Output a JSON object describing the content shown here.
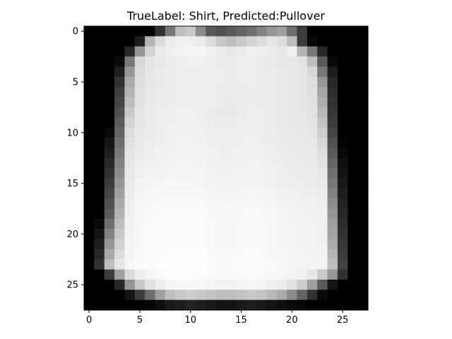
{
  "chart_data": {
    "type": "heatmap",
    "title": "TrueLabel: Shirt, Predicted:Pullover",
    "xlabel": "",
    "ylabel": "",
    "colormap": "gray",
    "background_color": "#ffffff",
    "grid": false,
    "legend": "none",
    "xlim": [
      -0.5,
      27.5
    ],
    "ylim": [
      27.5,
      -0.5
    ],
    "x_ticks": [
      0,
      5,
      10,
      15,
      20,
      25
    ],
    "y_ticks": [
      0,
      5,
      10,
      15,
      20,
      25
    ],
    "x_tick_labels": [
      "0",
      "5",
      "10",
      "15",
      "20",
      "25"
    ],
    "y_tick_labels": [
      "0",
      "5",
      "10",
      "15",
      "20",
      "25"
    ],
    "value_range": [
      0,
      255
    ],
    "pixels": [
      [
        0,
        0,
        0,
        0,
        0,
        0,
        5,
        50,
        120,
        190,
        200,
        140,
        90,
        80,
        90,
        100,
        110,
        130,
        150,
        160,
        110,
        60,
        0,
        0,
        0,
        0,
        0,
        0
      ],
      [
        0,
        0,
        0,
        0,
        0,
        30,
        180,
        220,
        235,
        240,
        240,
        235,
        220,
        200,
        190,
        200,
        210,
        220,
        230,
        220,
        190,
        60,
        10,
        0,
        0,
        0,
        0,
        0
      ],
      [
        0,
        0,
        0,
        0,
        40,
        150,
        210,
        235,
        240,
        242,
        245,
        245,
        240,
        235,
        232,
        235,
        240,
        238,
        235,
        232,
        240,
        180,
        120,
        40,
        0,
        0,
        0,
        0
      ],
      [
        0,
        0,
        0,
        10,
        120,
        215,
        230,
        232,
        235,
        238,
        240,
        240,
        238,
        236,
        236,
        237,
        238,
        236,
        234,
        232,
        232,
        228,
        190,
        90,
        10,
        0,
        0,
        0
      ],
      [
        0,
        0,
        0,
        30,
        150,
        220,
        230,
        234,
        236,
        238,
        238,
        239,
        239,
        237,
        236,
        238,
        238,
        236,
        235,
        233,
        232,
        230,
        215,
        120,
        30,
        0,
        0,
        0
      ],
      [
        0,
        0,
        0,
        50,
        170,
        222,
        231,
        234,
        236,
        237,
        238,
        238,
        238,
        237,
        236,
        237,
        238,
        236,
        235,
        233,
        232,
        230,
        222,
        150,
        40,
        0,
        0,
        0
      ],
      [
        0,
        0,
        0,
        60,
        180,
        224,
        232,
        235,
        236,
        237,
        238,
        238,
        237,
        236,
        235,
        236,
        237,
        236,
        235,
        233,
        232,
        230,
        224,
        165,
        45,
        0,
        0,
        0
      ],
      [
        0,
        0,
        0,
        70,
        190,
        226,
        233,
        236,
        237,
        238,
        238,
        238,
        237,
        235,
        234,
        236,
        237,
        236,
        235,
        233,
        232,
        230,
        225,
        175,
        50,
        0,
        0,
        0
      ],
      [
        0,
        0,
        0,
        80,
        200,
        228,
        234,
        237,
        238,
        240,
        240,
        238,
        236,
        232,
        233,
        236,
        238,
        237,
        235,
        233,
        232,
        230,
        226,
        185,
        55,
        0,
        0,
        0
      ],
      [
        0,
        0,
        0,
        90,
        210,
        230,
        235,
        238,
        239,
        240,
        240,
        239,
        237,
        236,
        236,
        237,
        238,
        237,
        235,
        233,
        232,
        231,
        228,
        195,
        60,
        0,
        0,
        0
      ],
      [
        0,
        0,
        10,
        100,
        220,
        232,
        236,
        238,
        240,
        241,
        241,
        240,
        238,
        237,
        237,
        238,
        239,
        238,
        236,
        234,
        233,
        232,
        230,
        205,
        70,
        0,
        0,
        0
      ],
      [
        0,
        0,
        20,
        110,
        225,
        234,
        237,
        239,
        240,
        242,
        242,
        241,
        239,
        238,
        238,
        239,
        240,
        239,
        237,
        235,
        234,
        233,
        232,
        215,
        80,
        5,
        0,
        0
      ],
      [
        0,
        0,
        30,
        120,
        228,
        236,
        238,
        240,
        241,
        243,
        243,
        242,
        240,
        239,
        239,
        240,
        241,
        240,
        238,
        236,
        235,
        234,
        233,
        222,
        90,
        10,
        0,
        0
      ],
      [
        0,
        0,
        40,
        130,
        230,
        238,
        240,
        241,
        242,
        244,
        244,
        243,
        241,
        240,
        240,
        241,
        242,
        241,
        239,
        237,
        236,
        235,
        234,
        228,
        100,
        15,
        0,
        0
      ],
      [
        0,
        0,
        50,
        140,
        232,
        240,
        242,
        243,
        244,
        245,
        245,
        244,
        242,
        241,
        241,
        242,
        243,
        242,
        240,
        238,
        237,
        236,
        235,
        232,
        110,
        20,
        0,
        0
      ],
      [
        0,
        0,
        60,
        150,
        234,
        242,
        244,
        245,
        246,
        246,
        246,
        245,
        243,
        242,
        242,
        243,
        244,
        243,
        241,
        239,
        238,
        237,
        236,
        234,
        120,
        25,
        0,
        0
      ],
      [
        0,
        0,
        70,
        160,
        236,
        244,
        246,
        247,
        248,
        248,
        248,
        247,
        245,
        244,
        244,
        245,
        246,
        245,
        243,
        241,
        240,
        239,
        238,
        236,
        130,
        30,
        0,
        0
      ],
      [
        0,
        0,
        80,
        170,
        238,
        246,
        248,
        249,
        250,
        250,
        250,
        249,
        247,
        246,
        246,
        247,
        248,
        247,
        245,
        243,
        242,
        241,
        240,
        238,
        140,
        35,
        0,
        0
      ],
      [
        0,
        0,
        90,
        180,
        240,
        247,
        249,
        250,
        251,
        251,
        251,
        250,
        248,
        247,
        247,
        248,
        249,
        248,
        246,
        244,
        243,
        242,
        241,
        240,
        150,
        40,
        0,
        0
      ],
      [
        0,
        10,
        110,
        190,
        242,
        248,
        250,
        251,
        252,
        252,
        252,
        251,
        249,
        248,
        248,
        249,
        250,
        249,
        247,
        245,
        244,
        243,
        242,
        241,
        160,
        45,
        0,
        0
      ],
      [
        0,
        20,
        130,
        200,
        243,
        248,
        250,
        251,
        252,
        252,
        252,
        251,
        249,
        248,
        248,
        249,
        250,
        249,
        247,
        245,
        244,
        243,
        242,
        241,
        165,
        50,
        0,
        0
      ],
      [
        0,
        30,
        150,
        210,
        244,
        248,
        250,
        251,
        252,
        252,
        252,
        251,
        249,
        248,
        248,
        249,
        250,
        249,
        247,
        245,
        244,
        243,
        242,
        241,
        170,
        55,
        0,
        0
      ],
      [
        0,
        40,
        170,
        220,
        245,
        249,
        251,
        252,
        253,
        253,
        253,
        252,
        250,
        249,
        249,
        250,
        251,
        250,
        248,
        246,
        245,
        244,
        243,
        242,
        180,
        60,
        0,
        0
      ],
      [
        0,
        50,
        190,
        230,
        246,
        250,
        252,
        253,
        254,
        254,
        254,
        253,
        251,
        250,
        250,
        251,
        252,
        251,
        249,
        247,
        246,
        245,
        244,
        243,
        190,
        65,
        0,
        0
      ],
      [
        0,
        0,
        60,
        160,
        220,
        238,
        245,
        250,
        252,
        253,
        253,
        252,
        250,
        249,
        249,
        250,
        251,
        250,
        248,
        246,
        244,
        240,
        230,
        200,
        150,
        50,
        0,
        0
      ],
      [
        0,
        0,
        0,
        40,
        150,
        200,
        225,
        238,
        245,
        248,
        248,
        246,
        244,
        242,
        242,
        244,
        246,
        244,
        240,
        235,
        225,
        205,
        160,
        90,
        20,
        0,
        0,
        0
      ],
      [
        0,
        0,
        0,
        0,
        20,
        60,
        110,
        160,
        190,
        200,
        205,
        200,
        195,
        190,
        190,
        195,
        200,
        195,
        185,
        170,
        140,
        100,
        50,
        10,
        0,
        0,
        0,
        0
      ],
      [
        0,
        0,
        0,
        0,
        0,
        0,
        5,
        15,
        25,
        30,
        35,
        30,
        25,
        20,
        20,
        25,
        30,
        25,
        20,
        15,
        10,
        5,
        0,
        0,
        0,
        0,
        0,
        0
      ]
    ]
  }
}
